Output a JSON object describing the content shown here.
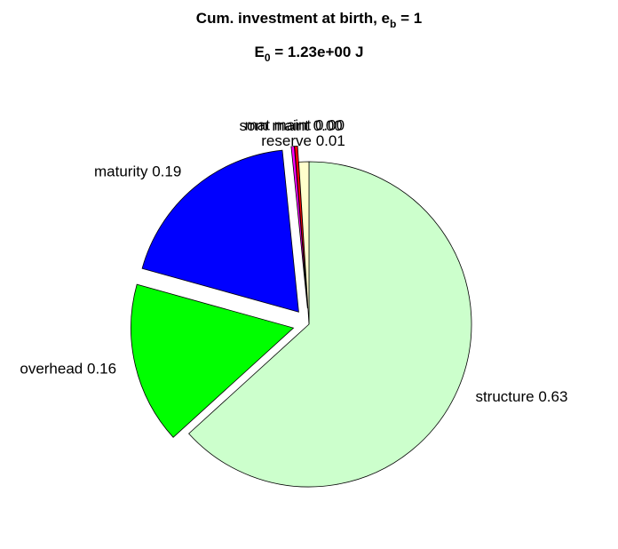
{
  "chart_data": {
    "type": "pie",
    "title": [
      "Cum. investment at birth, e",
      "b",
      " = 1"
    ],
    "subtitle": [
      "E",
      "0",
      " = 1.23e+00 J"
    ],
    "categories": [
      "structure",
      "overhead",
      "maturity",
      "som maint",
      "mat maint",
      "reserve"
    ],
    "values": [
      0.63,
      0.16,
      0.19,
      0.003,
      0.003,
      0.01
    ],
    "value_labels": [
      "0.63",
      "0.16",
      "0.19",
      "0.00",
      "0.00",
      "0.01"
    ],
    "colors": [
      "#ccffcc",
      "#00ff00",
      "#0000ff",
      "#ff00ff",
      "#ff0000",
      "#ffffcc"
    ],
    "explode": [
      false,
      true,
      true,
      true,
      true,
      false
    ]
  }
}
